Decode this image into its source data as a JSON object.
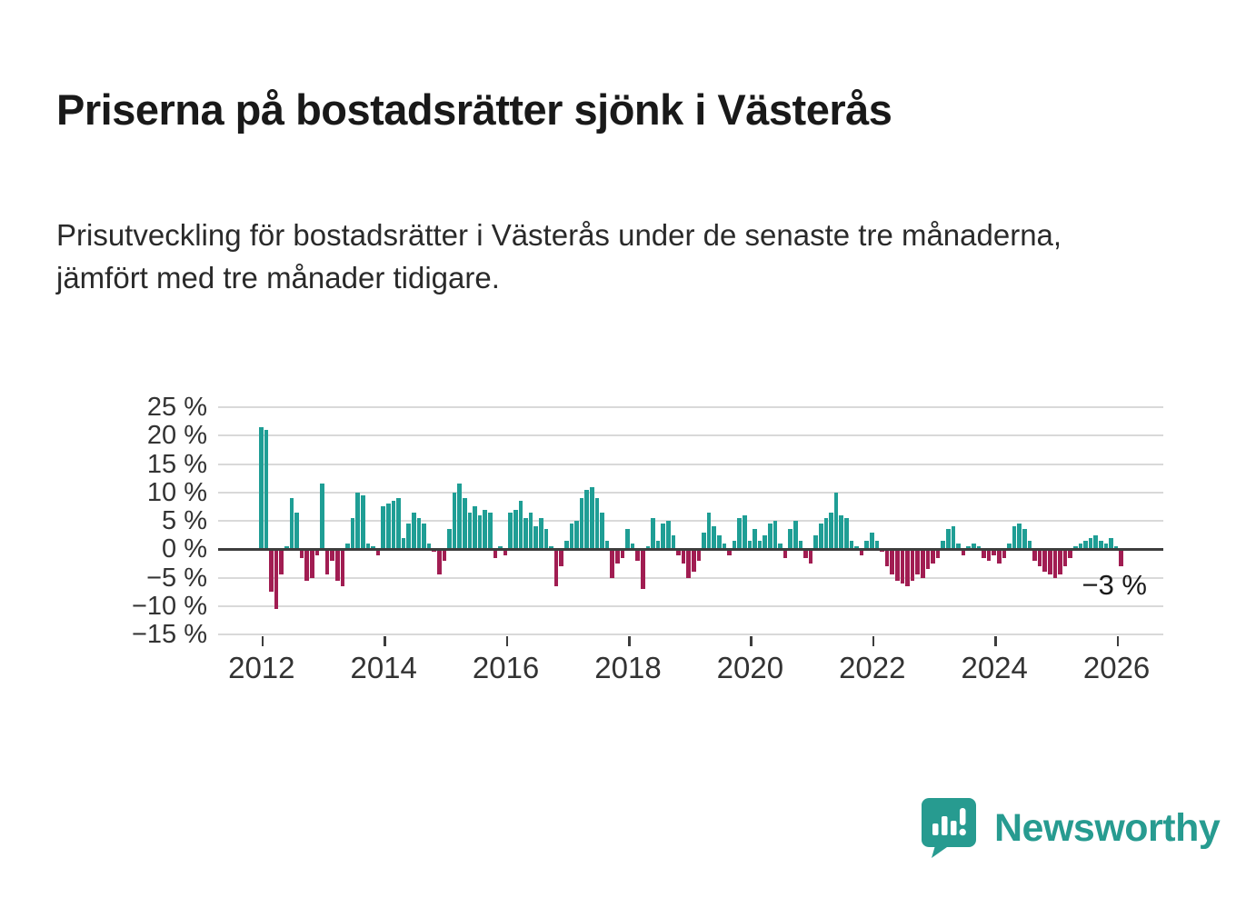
{
  "title": "Priserna på bostadsrätter sjönk i Västerås",
  "subtitle": "Prisutveckling för bostadsrätter i Västerås under de senaste tre månaderna, jämfört med tre månader tidigare.",
  "annotation": "−3 %",
  "brand": {
    "name": "Newsworthy"
  },
  "colors": {
    "positive": "#1f9e95",
    "negative": "#a11d52",
    "grid_line": "#d9d9d9",
    "zero_line": "#3d3d3d",
    "brand": "#279b90",
    "axis_text": "#333333"
  },
  "chart_data": {
    "type": "bar",
    "title": "Priserna på bostadsrätter sjönk i Västerås",
    "subtitle": "Prisutveckling för bostadsrätter i Västerås under de senaste tre månaderna, jämfört med tre månader tidigare.",
    "unit": "%",
    "ylim": [
      -15,
      25
    ],
    "yticks": [
      25,
      20,
      15,
      10,
      5,
      0,
      -5,
      -10,
      -15
    ],
    "ytick_labels": [
      "25 %",
      "20 %",
      "15 %",
      "10 %",
      "5 %",
      "0 %",
      "−5 %",
      "−10 %",
      "−15 %"
    ],
    "xticks": [
      2012,
      2014,
      2016,
      2018,
      2020,
      2022,
      2024,
      2026
    ],
    "start_year": 2012,
    "freq": "monthly",
    "last_value_label": "−3 %",
    "values": [
      21.5,
      21,
      -7.5,
      -10.5,
      -4.5,
      0.5,
      9,
      6.5,
      -1.5,
      -5.5,
      -5,
      -1,
      11.5,
      -4.5,
      -2,
      -5.5,
      -6.5,
      1,
      5.5,
      10,
      9.5,
      1,
      0.5,
      -1,
      7.5,
      8,
      8.5,
      9,
      2,
      4.5,
      6.5,
      5.5,
      4.5,
      1,
      -0.5,
      -4.5,
      -2,
      3.5,
      10,
      11.5,
      9,
      6.5,
      7.5,
      6,
      7,
      6.5,
      -1.5,
      0.5,
      -1,
      6.5,
      7,
      8.5,
      5.5,
      6.5,
      4,
      5.5,
      3.5,
      0.5,
      -6.5,
      -3,
      1.5,
      4.5,
      5,
      9,
      10.5,
      11,
      9,
      6.5,
      1.5,
      -5,
      -2.5,
      -1.5,
      3.5,
      1,
      -2,
      -7,
      0.5,
      5.5,
      1.5,
      4.5,
      5,
      2.5,
      -1,
      -2.5,
      -5,
      -4,
      -2,
      3,
      6.5,
      4,
      2.5,
      1,
      -1,
      1.5,
      5.5,
      6,
      1.5,
      3.5,
      1.5,
      2.5,
      4.5,
      5,
      1,
      -1.5,
      3.5,
      5,
      1.5,
      -1.5,
      -2.5,
      2.5,
      4.5,
      5.5,
      6.5,
      10,
      6,
      5.5,
      1.5,
      0.5,
      -1,
      1.5,
      3,
      1.5,
      -0.5,
      -3,
      -4.5,
      -5.5,
      -6,
      -6.5,
      -5.5,
      -4.5,
      -5,
      -3.5,
      -2.5,
      -1.5,
      1.5,
      3.5,
      4,
      1,
      -1,
      0.5,
      1,
      0.5,
      -1.5,
      -2,
      -1,
      -2.5,
      -1.5,
      1,
      4,
      4.5,
      3.5,
      1.5,
      -2,
      -3,
      -4,
      -4.5,
      -5,
      -4.5,
      -3,
      -1.5,
      0.5,
      1,
      1.5,
      2,
      2.5,
      1.5,
      1,
      2,
      0.5,
      -3
    ]
  }
}
